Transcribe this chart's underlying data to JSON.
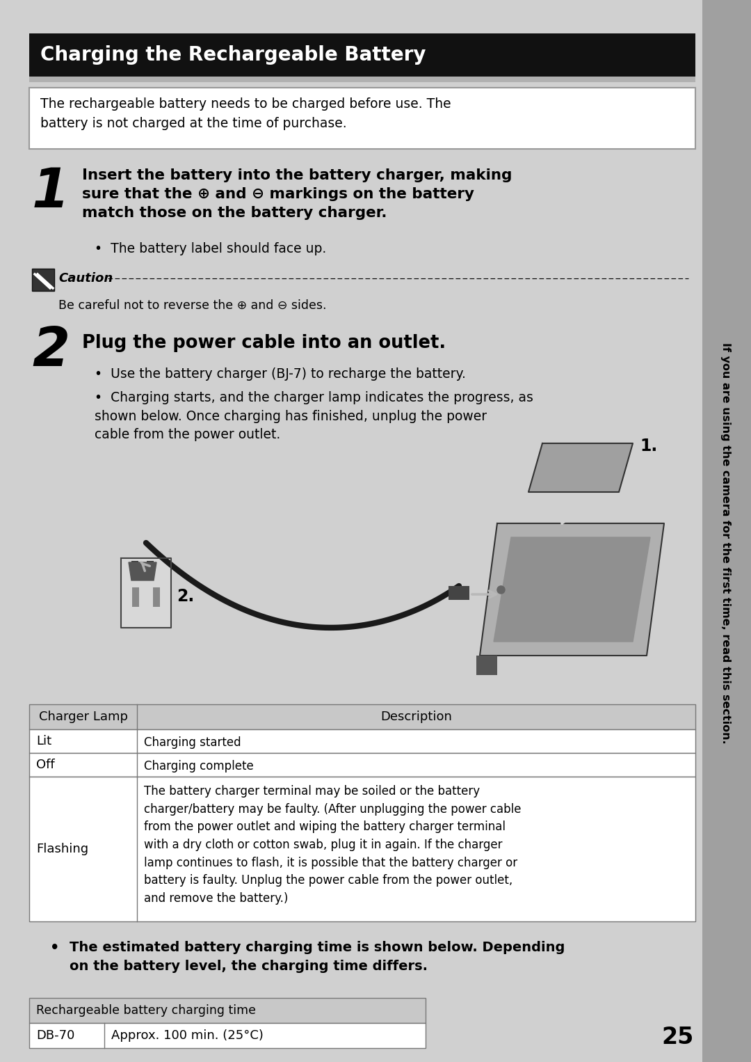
{
  "page_bg": "#d0d0d0",
  "title_bg": "#111111",
  "title_text": "Charging the Rechargeable Battery",
  "title_color": "#ffffff",
  "intro_text": "The rechargeable battery needs to be charged before use. The\nbattery is not charged at the time of purchase.",
  "step1_num": "1",
  "step1_bold": "Insert the battery into the battery charger, making\nsure that the ⊕ and ⊖ markings on the battery\nmatch those on the battery charger.",
  "step1_bullet": "The battery label should face up.",
  "caution_title": "Caution",
  "caution_text": "Be careful not to reverse the ⊕ and ⊖ sides.",
  "step2_num": "2",
  "step2_bold": "Plug the power cable into an outlet.",
  "step2_bullet1": "Use the battery charger (BJ-7) to recharge the battery.",
  "step2_bullet2": "Charging starts, and the charger lamp indicates the progress, as\nshown below. Once charging has finished, unplug the power\ncable from the power outlet.",
  "table_header": [
    "Charger Lamp",
    "Description"
  ],
  "table_rows": [
    [
      "Lit",
      "Charging started"
    ],
    [
      "Off",
      "Charging complete"
    ],
    [
      "Flashing",
      "The battery charger terminal may be soiled or the battery\ncharger/battery may be faulty. (After unplugging the power cable\nfrom the power outlet and wiping the battery charger terminal\nwith a dry cloth or cotton swab, plug it in again. If the charger\nlamp continues to flash, it is possible that the battery charger or\nbattery is faulty. Unplug the power cable from the power outlet,\nand remove the battery.)"
    ]
  ],
  "bullet2_text_bold": "The estimated battery charging time is shown below. Depending\non the battery level, the charging time differs.",
  "table2_header": "Rechargeable battery charging time",
  "table2_row": [
    "DB-70",
    "Approx. 100 min. (25°C)"
  ],
  "sidebar_text": "If you are using the camera for the first time, read this section.",
  "page_number": "25",
  "sidebar_bg": "#a0a0a0",
  "table_header_bg": "#c8c8c8",
  "table2_header_bg": "#c8c8c8",
  "intro_box_bg": "#ffffff",
  "intro_box_border": "#999999",
  "between_title_stripe_bg": "#b0b0b0"
}
